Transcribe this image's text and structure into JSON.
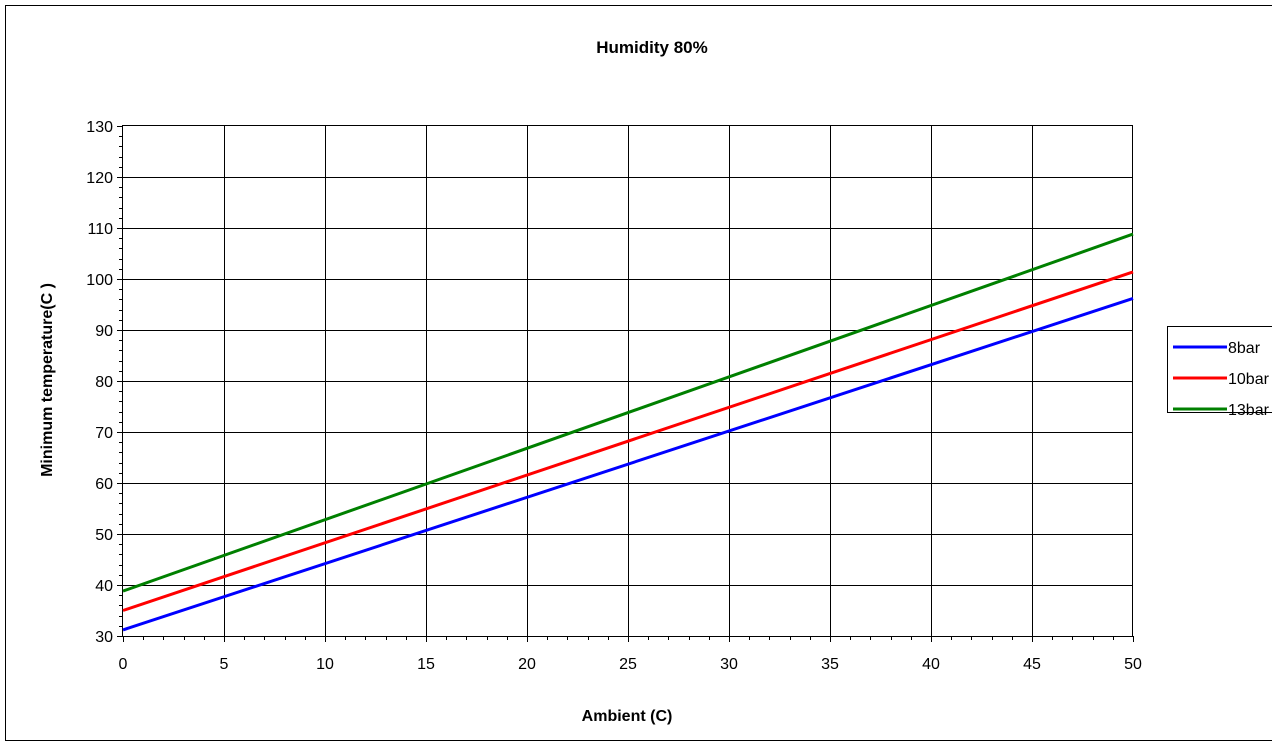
{
  "chart_data": {
    "type": "line",
    "title": "Humidity 80%",
    "xlabel": "Ambient (C)",
    "ylabel": "Minimum temperature(C )",
    "xlim": [
      0,
      50
    ],
    "ylim": [
      30,
      130
    ],
    "x_ticks": [
      0,
      5,
      10,
      15,
      20,
      25,
      30,
      35,
      40,
      45,
      50
    ],
    "y_ticks": [
      30,
      40,
      50,
      60,
      70,
      80,
      90,
      100,
      110,
      120,
      130
    ],
    "grid": true,
    "legend_position": "right",
    "series": [
      {
        "name": "8bar",
        "color": "#0000ff",
        "x": [
          0,
          50
        ],
        "y": [
          31.2,
          96.2
        ]
      },
      {
        "name": "10bar",
        "color": "#ff0000",
        "x": [
          0,
          50
        ],
        "y": [
          35.0,
          101.4
        ]
      },
      {
        "name": "13bar",
        "color": "#008000",
        "x": [
          0,
          50
        ],
        "y": [
          38.8,
          108.8
        ]
      }
    ]
  }
}
